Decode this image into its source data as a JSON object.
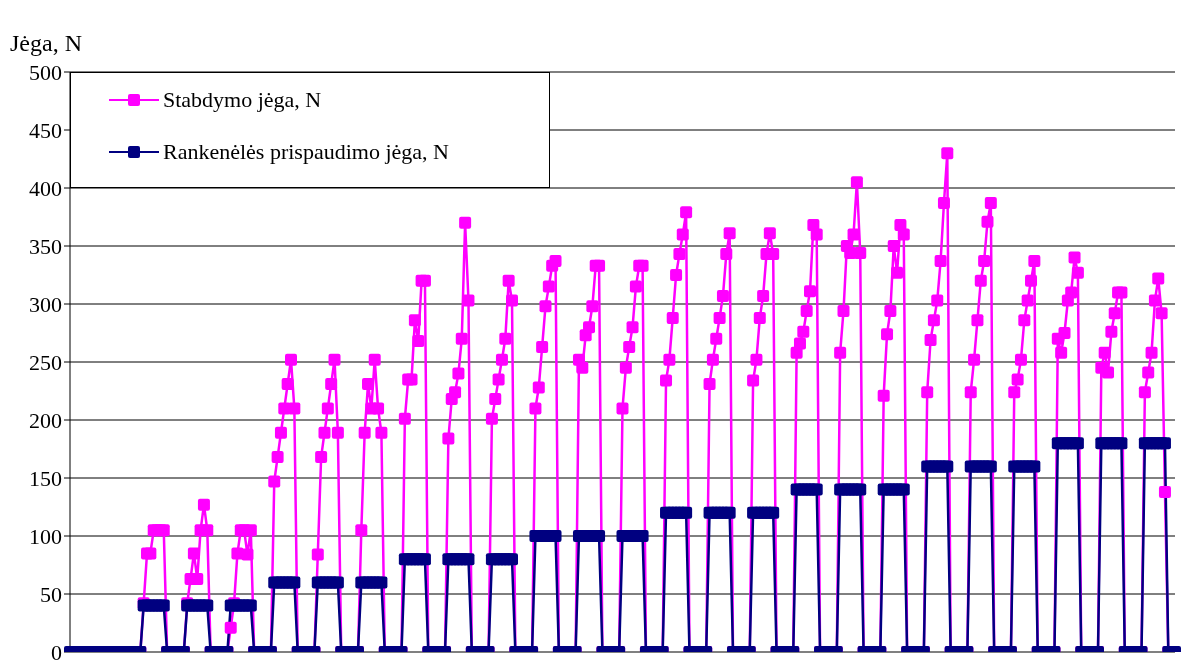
{
  "chart_data": {
    "type": "line",
    "ylabel": "Jėga, N",
    "categories": [
      null,
      null,
      null,
      null,
      null,
      null,
      null,
      null,
      null,
      null,
      null,
      null,
      null,
      null,
      null,
      null,
      null,
      null,
      null,
      null,
      null,
      null,
      null,
      null,
      null,
      null,
      null,
      null,
      null,
      null,
      null,
      null,
      null,
      null,
      null,
      null,
      null,
      null,
      null,
      null,
      null,
      null,
      null,
      null,
      null,
      null,
      null,
      null,
      null,
      null,
      null,
      null,
      null,
      null,
      null,
      null,
      null,
      null,
      null,
      null,
      null,
      null,
      null,
      null,
      null,
      null,
      null,
      null,
      null,
      null,
      null,
      null,
      null,
      null,
      null,
      null,
      null,
      null,
      null,
      null,
      null,
      null,
      null,
      null,
      null,
      null,
      null,
      null,
      null,
      null,
      null,
      null,
      null,
      null,
      null,
      null,
      null,
      null,
      null,
      null,
      null,
      null,
      null,
      null,
      null,
      null,
      null,
      null,
      null,
      null,
      null,
      null,
      null,
      null,
      null,
      null,
      null,
      null,
      null,
      null,
      null,
      null,
      null,
      null,
      null,
      null,
      null,
      null,
      null,
      null,
      null,
      null,
      null,
      null,
      null,
      null,
      null,
      null,
      null,
      null,
      null,
      null,
      null,
      null,
      null,
      null,
      null,
      null,
      null,
      null,
      null,
      null,
      null,
      null,
      null,
      null,
      null,
      null,
      null,
      null,
      null,
      null,
      null,
      null,
      null,
      null,
      null,
      null,
      null,
      null,
      null,
      null,
      null,
      null,
      null,
      null,
      null,
      null,
      null,
      null,
      null,
      null,
      null,
      null,
      null,
      null,
      null,
      null,
      null,
      null,
      null,
      null,
      null,
      null,
      null,
      null,
      null,
      null,
      null,
      null,
      null,
      null,
      null,
      null,
      null,
      null,
      null,
      null,
      null,
      null,
      null,
      null,
      null,
      null,
      null,
      null,
      null,
      null,
      null,
      null,
      null,
      null,
      null,
      null,
      null,
      null,
      null,
      null,
      null,
      null,
      null,
      null,
      null,
      null,
      null,
      null,
      null,
      null,
      null,
      null,
      null,
      null,
      null,
      null,
      null,
      null,
      null,
      null,
      null,
      null,
      null,
      null,
      null,
      null,
      null,
      null,
      null,
      null,
      null,
      null,
      null,
      null,
      null,
      null,
      null,
      null,
      null,
      null,
      null,
      null,
      null,
      null,
      null,
      null,
      null,
      null,
      null,
      null,
      null,
      null,
      null,
      null,
      null,
      null,
      null,
      null,
      null,
      null,
      null,
      null,
      null,
      null,
      null,
      null,
      null,
      null,
      null,
      null,
      null,
      null,
      null,
      null,
      null,
      null,
      null,
      null,
      null,
      null,
      null,
      null,
      null,
      null,
      null,
      null,
      null,
      null,
      null,
      null,
      null,
      null,
      null,
      null,
      null,
      null,
      null,
      null,
      null,
      null,
      null,
      null,
      null
    ],
    "series": [
      {
        "name": "Stabdymo jėga, N",
        "color": "#ff00ff",
        "values": [
          null,
          null,
          null,
          null,
          null,
          null,
          null,
          null,
          null,
          null,
          null,
          null,
          null,
          null,
          null,
          null,
          null,
          null,
          null,
          null,
          null,
          0,
          42,
          85,
          85,
          105,
          105,
          105,
          105,
          0,
          0,
          0,
          0,
          0,
          0,
          42,
          63,
          85,
          63,
          105,
          127,
          105,
          0,
          0,
          0,
          0,
          0,
          0,
          21,
          42,
          85,
          105,
          105,
          84,
          105,
          0,
          0,
          0,
          0,
          0,
          0,
          147,
          168,
          189,
          210,
          231,
          252,
          210,
          0,
          0,
          0,
          0,
          0,
          0,
          84,
          168,
          189,
          210,
          231,
          252,
          189,
          0,
          0,
          0,
          0,
          0,
          0,
          105,
          189,
          231,
          210,
          252,
          210,
          189,
          0,
          0,
          0,
          0,
          0,
          0,
          201,
          235,
          235,
          286,
          268,
          320,
          320,
          0,
          0,
          0,
          0,
          0,
          0,
          184,
          218,
          224,
          240,
          270,
          370,
          303,
          0,
          0,
          0,
          0,
          0,
          0,
          201,
          218,
          235,
          252,
          270,
          320,
          303,
          0,
          0,
          0,
          0,
          0,
          0,
          210,
          228,
          263,
          298,
          315,
          333,
          337,
          0,
          0,
          0,
          0,
          0,
          0,
          252,
          245,
          273,
          280,
          298,
          333,
          333,
          0,
          0,
          0,
          0,
          0,
          0,
          210,
          245,
          263,
          280,
          315,
          333,
          333,
          0,
          0,
          0,
          0,
          0,
          0,
          234,
          252,
          288,
          325,
          343,
          360,
          379,
          0,
          0,
          0,
          0,
          0,
          0,
          231,
          252,
          270,
          288,
          307,
          343,
          361,
          0,
          0,
          0,
          0,
          0,
          0,
          234,
          252,
          288,
          307,
          343,
          361,
          343,
          0,
          0,
          0,
          0,
          0,
          0,
          258,
          266,
          276,
          294,
          311,
          368,
          360,
          0,
          0,
          0,
          0,
          0,
          0,
          258,
          294,
          350,
          344,
          360,
          405,
          344,
          0,
          0,
          0,
          0,
          0,
          0,
          221,
          274,
          294,
          350,
          327,
          368,
          360,
          0,
          0,
          0,
          0,
          0,
          0,
          224,
          269,
          286,
          303,
          337,
          387,
          430,
          0,
          0,
          0,
          0,
          0,
          0,
          224,
          252,
          286,
          320,
          337,
          371,
          387,
          0,
          0,
          0,
          0,
          0,
          0,
          224,
          235,
          252,
          286,
          303,
          320,
          337,
          0,
          0,
          0,
          0,
          0,
          0,
          270,
          258,
          275,
          303,
          310,
          340,
          327,
          0,
          0,
          0,
          0,
          0,
          0,
          245,
          258,
          241,
          276,
          292,
          310,
          310,
          0,
          0,
          0,
          0,
          0,
          0,
          224,
          241,
          258,
          303,
          322,
          292,
          138,
          0,
          null,
          null
        ]
      },
      {
        "name": "Rankenėlės prispaudimo jėga, N",
        "color": "#000080",
        "values": [
          0,
          0,
          0,
          0,
          0,
          0,
          0,
          0,
          0,
          0,
          0,
          0,
          0,
          0,
          0,
          0,
          0,
          0,
          0,
          0,
          0,
          0,
          40,
          40,
          40,
          40,
          40,
          40,
          40,
          0,
          0,
          0,
          0,
          0,
          0,
          40,
          40,
          40,
          40,
          40,
          40,
          40,
          0,
          0,
          0,
          0,
          0,
          0,
          40,
          40,
          40,
          40,
          40,
          40,
          40,
          0,
          0,
          0,
          0,
          0,
          0,
          60,
          60,
          60,
          60,
          60,
          60,
          60,
          0,
          0,
          0,
          0,
          0,
          0,
          60,
          60,
          60,
          60,
          60,
          60,
          60,
          0,
          0,
          0,
          0,
          0,
          0,
          60,
          60,
          60,
          60,
          60,
          60,
          60,
          0,
          0,
          0,
          0,
          0,
          0,
          80,
          80,
          80,
          80,
          80,
          80,
          80,
          0,
          0,
          0,
          0,
          0,
          0,
          80,
          80,
          80,
          80,
          80,
          80,
          80,
          0,
          0,
          0,
          0,
          0,
          0,
          80,
          80,
          80,
          80,
          80,
          80,
          80,
          0,
          0,
          0,
          0,
          0,
          0,
          100,
          100,
          100,
          100,
          100,
          100,
          100,
          0,
          0,
          0,
          0,
          0,
          0,
          100,
          100,
          100,
          100,
          100,
          100,
          100,
          0,
          0,
          0,
          0,
          0,
          0,
          100,
          100,
          100,
          100,
          100,
          100,
          100,
          0,
          0,
          0,
          0,
          0,
          0,
          120,
          120,
          120,
          120,
          120,
          120,
          120,
          0,
          0,
          0,
          0,
          0,
          0,
          120,
          120,
          120,
          120,
          120,
          120,
          120,
          0,
          0,
          0,
          0,
          0,
          0,
          120,
          120,
          120,
          120,
          120,
          120,
          120,
          0,
          0,
          0,
          0,
          0,
          0,
          140,
          140,
          140,
          140,
          140,
          140,
          140,
          0,
          0,
          0,
          0,
          0,
          0,
          140,
          140,
          140,
          140,
          140,
          140,
          140,
          0,
          0,
          0,
          0,
          0,
          0,
          140,
          140,
          140,
          140,
          140,
          140,
          140,
          0,
          0,
          0,
          0,
          0,
          0,
          160,
          160,
          160,
          160,
          160,
          160,
          160,
          0,
          0,
          0,
          0,
          0,
          0,
          160,
          160,
          160,
          160,
          160,
          160,
          160,
          0,
          0,
          0,
          0,
          0,
          0,
          160,
          160,
          160,
          160,
          160,
          160,
          160,
          0,
          0,
          0,
          0,
          0,
          0,
          180,
          180,
          180,
          180,
          180,
          180,
          180,
          0,
          0,
          0,
          0,
          0,
          0,
          180,
          180,
          180,
          180,
          180,
          180,
          180,
          0,
          0,
          0,
          0,
          0,
          0,
          180,
          180,
          180,
          180,
          180,
          180,
          180,
          0,
          0,
          0
        ]
      }
    ],
    "ylim": [
      0,
      500
    ],
    "yticks": [
      0,
      50,
      100,
      150,
      200,
      250,
      300,
      350,
      400,
      450,
      500
    ],
    "grid": "y",
    "legend": "top left",
    "marker": "square",
    "line_style": "solid",
    "tick_labels": "y"
  }
}
